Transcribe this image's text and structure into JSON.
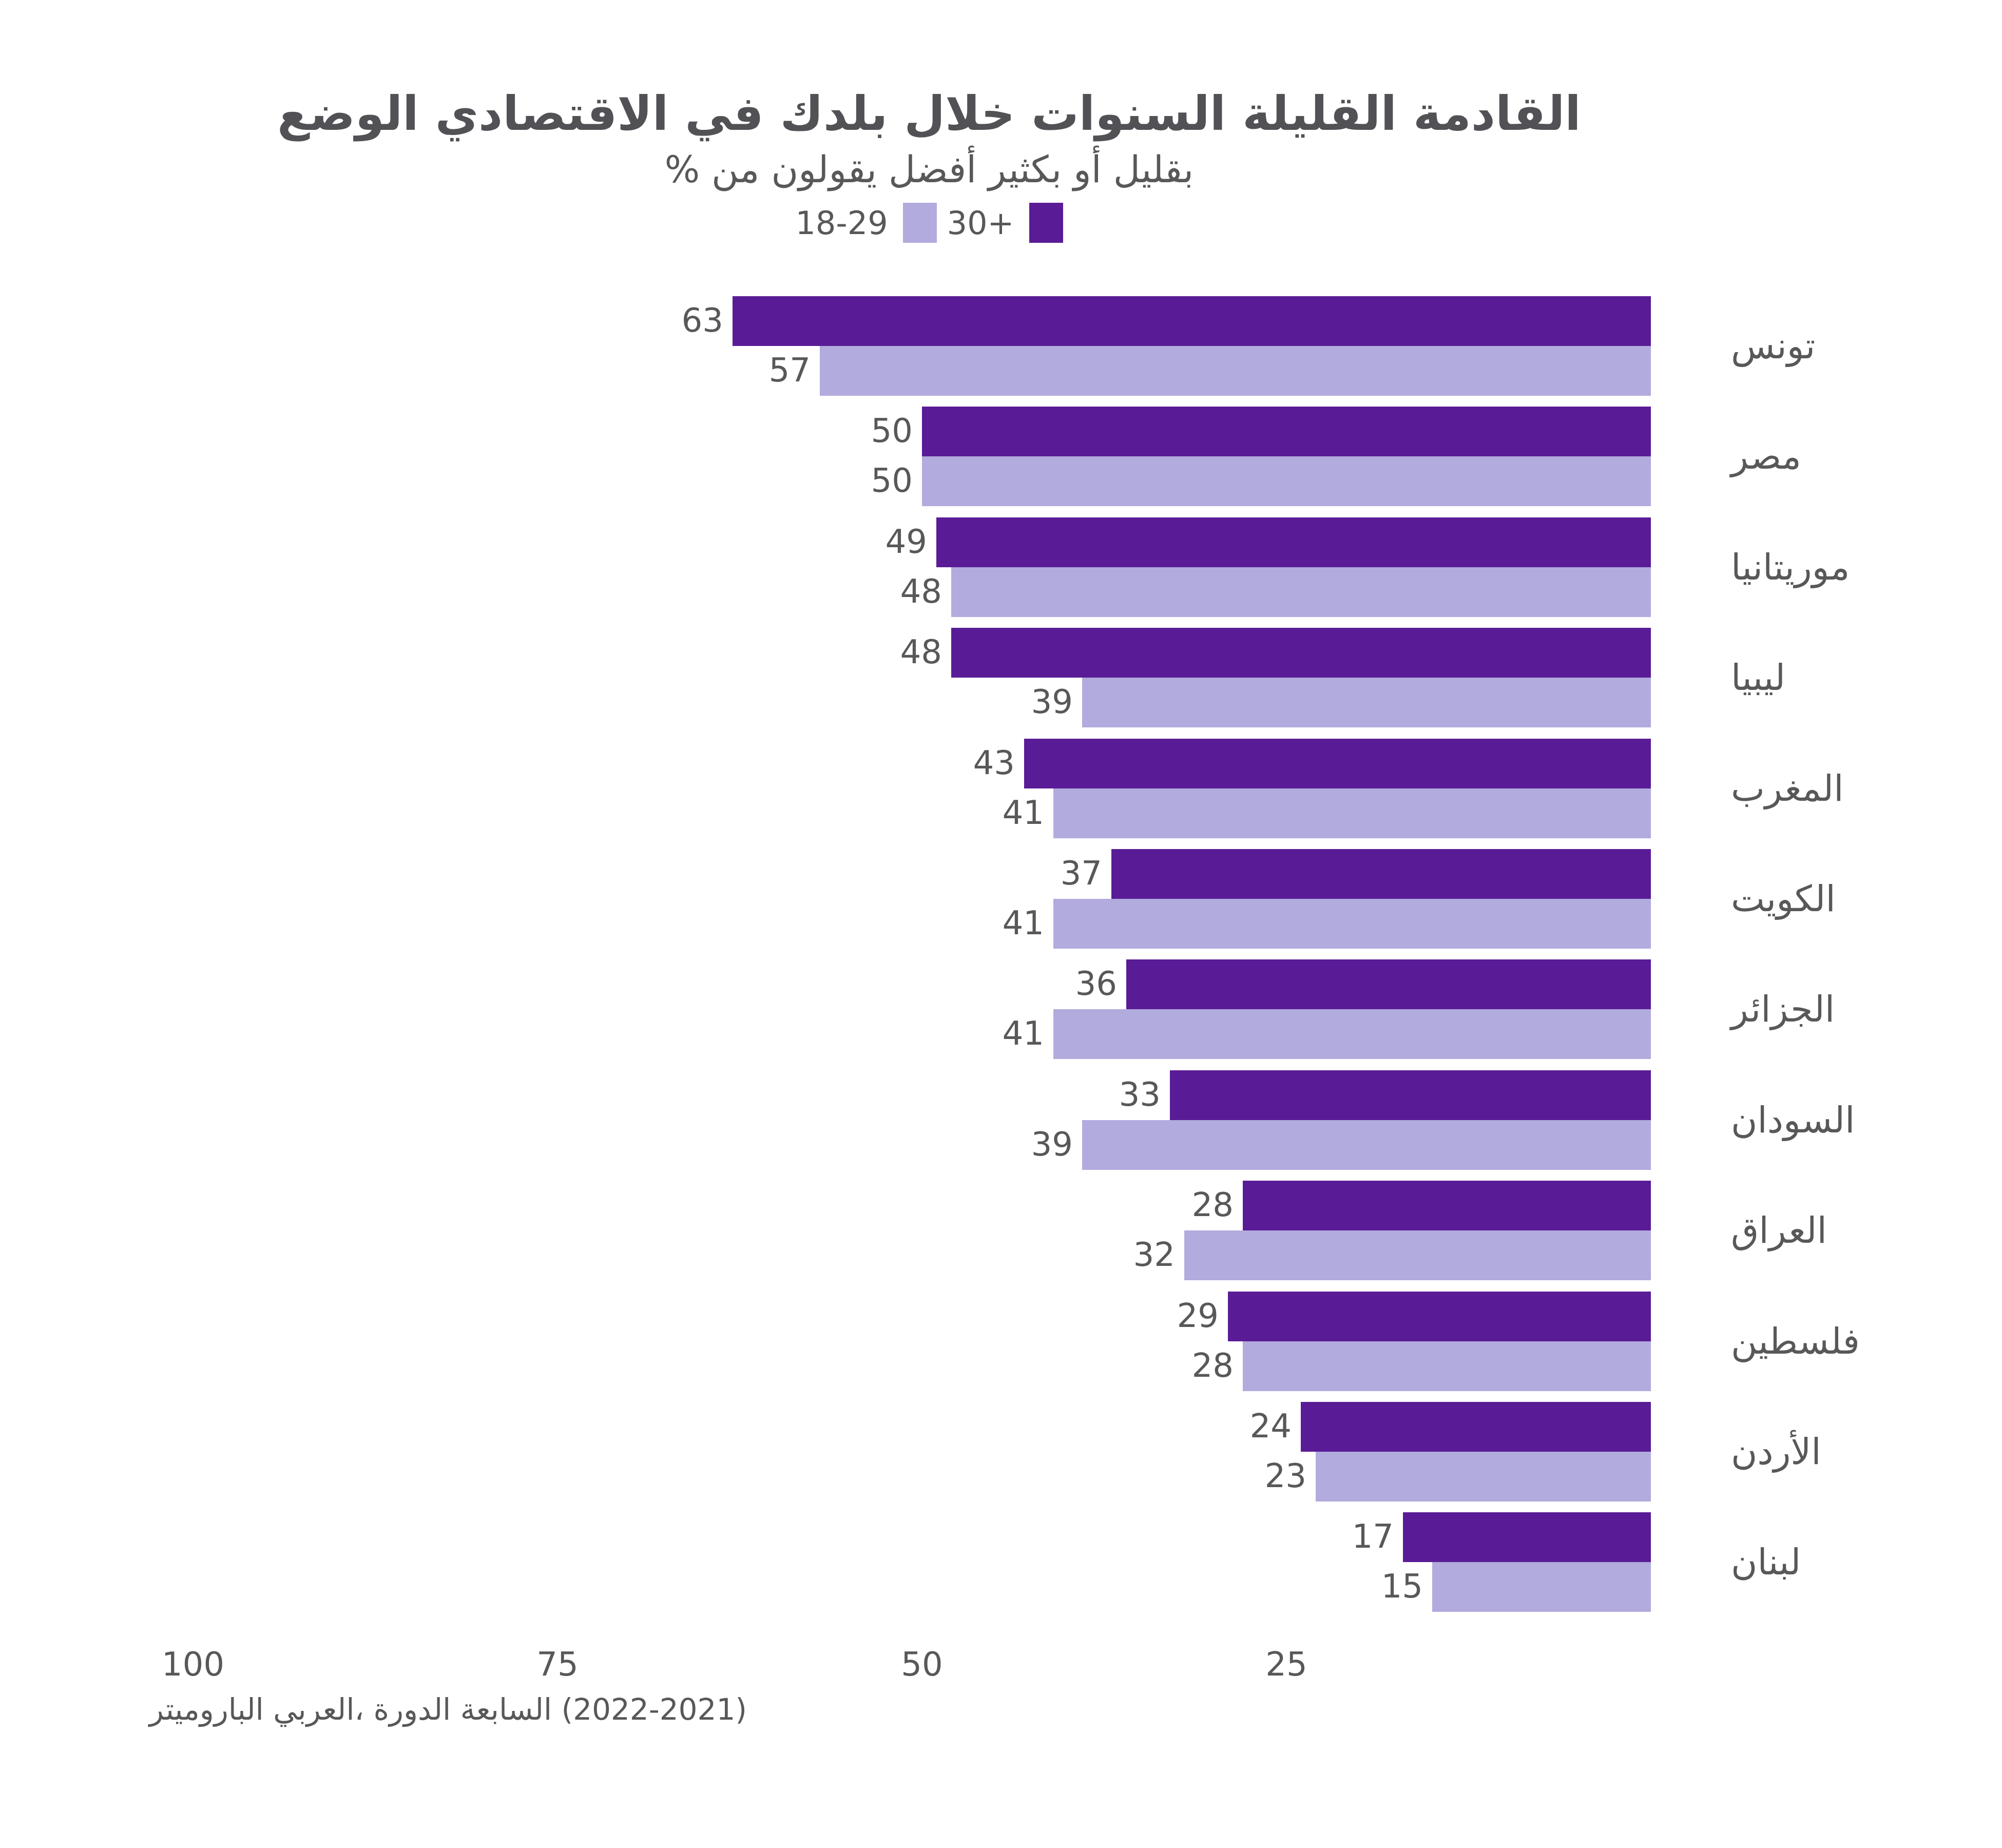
{
  "header": {
    "title": "الوضع الاقتصادي في بلدك خلال السنوات القليلة القادمة",
    "subtitle": "% من يقولون أفضل بكثير أو بقليل"
  },
  "legend": {
    "items": [
      {
        "label": "18-29",
        "color": "#b2abde"
      },
      {
        "label": "30+",
        "color": "#5a1c96"
      }
    ]
  },
  "chart_data": {
    "type": "bar",
    "orientation": "horizontal",
    "value_axis_direction": "right-to-left",
    "title": "الوضع الاقتصادي في بلدك خلال السنوات القليلة القادمة",
    "subtitle": "% من يقولون أفضل بكثير أو بقليل",
    "categories": [
      "تونس",
      "مصر",
      "موريتانيا",
      "ليبيا",
      "المغرب",
      "الكويت",
      "الجزائر",
      "السودان",
      "العراق",
      "فلسطين",
      "الأردن",
      "لبنان"
    ],
    "series": [
      {
        "name": "30+",
        "color": "#5a1c96",
        "values": [
          63,
          50,
          49,
          48,
          43,
          37,
          36,
          33,
          28,
          29,
          24,
          17
        ]
      },
      {
        "name": "18-29",
        "color": "#b2abde",
        "values": [
          57,
          50,
          48,
          39,
          41,
          41,
          41,
          39,
          32,
          28,
          23,
          15
        ]
      }
    ],
    "xticks": [
      100,
      75,
      50,
      25
    ],
    "xlim": [
      0,
      100
    ],
    "grid": false,
    "value_labels": true,
    "legend_position": "top-center"
  },
  "footer": {
    "source": "الباروميتر العربي، الدورة السابعة (2022-2021)"
  },
  "colors": {
    "background": "#ffffff",
    "text": "#58585a",
    "title": "#525156",
    "older": "#5a1c96",
    "younger": "#b2abde"
  }
}
